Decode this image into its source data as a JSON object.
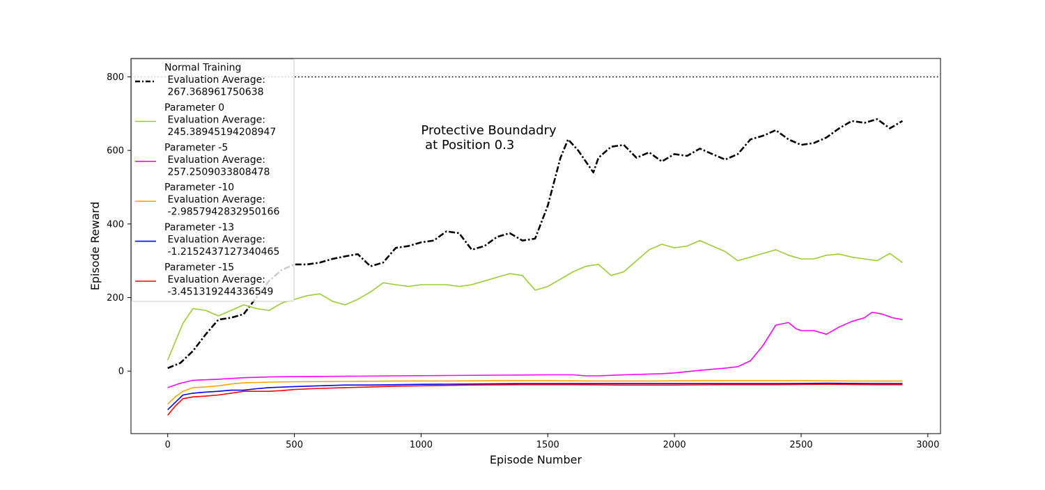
{
  "chart_data": {
    "type": "line",
    "title": "",
    "xlabel": "Episode Number",
    "ylabel": "Episode Reward",
    "xlim": [
      -145,
      3050
    ],
    "ylim": [
      -170,
      850
    ],
    "xticks": [
      0,
      500,
      1000,
      1500,
      2000,
      2500,
      3000
    ],
    "yticks": [
      0,
      200,
      400,
      600,
      800
    ],
    "grid": false,
    "legend_position": "top-left",
    "annotation": {
      "lines": [
        "Protective Boundadry",
        " at Position 0.3"
      ],
      "x": 1000,
      "y": 612
    },
    "reference_line": {
      "y": 800,
      "style": "dotted",
      "color": "#000000"
    },
    "series": [
      {
        "name": "Normal Training\n Evaluation Average:\n 267.368961750638",
        "color": "#000000",
        "style": "dashdot",
        "x": [
          0,
          50,
          100,
          150,
          200,
          250,
          300,
          350,
          400,
          450,
          500,
          550,
          600,
          650,
          700,
          750,
          800,
          850,
          900,
          950,
          1000,
          1050,
          1100,
          1150,
          1200,
          1250,
          1300,
          1350,
          1400,
          1450,
          1500,
          1550,
          1580,
          1620,
          1650,
          1680,
          1700,
          1750,
          1800,
          1850,
          1900,
          1950,
          2000,
          2050,
          2100,
          2150,
          2200,
          2250,
          2300,
          2350,
          2400,
          2450,
          2500,
          2550,
          2600,
          2650,
          2700,
          2750,
          2800,
          2850,
          2900
        ],
        "values": [
          8,
          22,
          55,
          100,
          140,
          145,
          155,
          200,
          245,
          275,
          290,
          290,
          295,
          305,
          312,
          318,
          285,
          295,
          335,
          340,
          350,
          355,
          380,
          375,
          330,
          340,
          365,
          375,
          355,
          360,
          450,
          580,
          630,
          600,
          570,
          540,
          580,
          610,
          615,
          580,
          595,
          570,
          590,
          585,
          605,
          590,
          575,
          590,
          630,
          640,
          655,
          630,
          615,
          620,
          635,
          660,
          680,
          675,
          685,
          660,
          680
        ]
      },
      {
        "name": "Parameter 0\n Evaluation Average:\n 245.38945194208947",
        "color": "#9acd32",
        "style": "solid",
        "x": [
          0,
          30,
          60,
          100,
          150,
          200,
          250,
          300,
          350,
          400,
          450,
          500,
          550,
          600,
          650,
          700,
          750,
          800,
          850,
          900,
          950,
          1000,
          1050,
          1100,
          1150,
          1200,
          1250,
          1300,
          1350,
          1400,
          1450,
          1500,
          1550,
          1600,
          1650,
          1700,
          1750,
          1800,
          1850,
          1900,
          1950,
          2000,
          2050,
          2100,
          2150,
          2200,
          2250,
          2300,
          2350,
          2400,
          2450,
          2500,
          2550,
          2600,
          2650,
          2700,
          2750,
          2800,
          2850,
          2900
        ],
        "values": [
          30,
          80,
          130,
          170,
          165,
          150,
          165,
          180,
          170,
          165,
          185,
          195,
          205,
          210,
          190,
          180,
          195,
          215,
          240,
          235,
          230,
          235,
          235,
          235,
          230,
          235,
          245,
          255,
          265,
          260,
          220,
          230,
          250,
          270,
          285,
          290,
          260,
          270,
          300,
          330,
          345,
          335,
          340,
          355,
          340,
          325,
          300,
          310,
          320,
          330,
          315,
          305,
          305,
          315,
          318,
          310,
          305,
          300,
          320,
          295
        ]
      },
      {
        "name": "Parameter -5\n Evaluation Average:\n 257.2509033808478",
        "color": "#ff00ff",
        "style": "solid",
        "x": [
          0,
          50,
          100,
          200,
          300,
          400,
          500,
          700,
          900,
          1100,
          1300,
          1500,
          1600,
          1650,
          1700,
          1800,
          1900,
          1950,
          2000,
          2100,
          2200,
          2250,
          2300,
          2350,
          2400,
          2450,
          2480,
          2500,
          2550,
          2600,
          2650,
          2700,
          2750,
          2780,
          2820,
          2860,
          2900
        ],
        "values": [
          -45,
          -33,
          -25,
          -22,
          -18,
          -16,
          -15,
          -14,
          -13,
          -12,
          -11,
          -10,
          -10,
          -13,
          -13,
          -10,
          -8,
          -7,
          -5,
          2,
          8,
          12,
          28,
          70,
          125,
          132,
          115,
          110,
          110,
          100,
          120,
          135,
          145,
          160,
          155,
          145,
          140
        ]
      },
      {
        "name": "Parameter -10\n Evaluation Average:\n -2.9857942832950166",
        "color": "#ffa500",
        "style": "solid",
        "x": [
          0,
          30,
          60,
          100,
          150,
          200,
          250,
          300,
          400,
          500,
          700,
          900,
          1100,
          1300,
          1500,
          1700,
          1900,
          2100,
          2300,
          2500,
          2700,
          2900
        ],
        "values": [
          -90,
          -70,
          -55,
          -45,
          -43,
          -40,
          -35,
          -32,
          -30,
          -29,
          -28,
          -27,
          -27,
          -26,
          -26,
          -27,
          -27,
          -26,
          -26,
          -26,
          -27,
          -27
        ]
      },
      {
        "name": "Parameter -13\n Evaluation Average:\n -1.2152437127340465",
        "color": "#0000ff",
        "style": "solid",
        "x": [
          0,
          30,
          60,
          100,
          150,
          200,
          250,
          300,
          350,
          400,
          500,
          600,
          700,
          800,
          900,
          1000,
          1200,
          1400,
          1600,
          1800,
          2000,
          2200,
          2400,
          2600,
          2800,
          2900
        ],
        "values": [
          -105,
          -85,
          -65,
          -60,
          -57,
          -55,
          -52,
          -52,
          -48,
          -45,
          -42,
          -40,
          -38,
          -38,
          -37,
          -36,
          -35,
          -34,
          -34,
          -34,
          -34,
          -34,
          -34,
          -33,
          -34,
          -34
        ]
      },
      {
        "name": "Parameter -15\n Evaluation Average:\n -3.451319244336549",
        "color": "#ff0000",
        "style": "solid",
        "x": [
          0,
          30,
          60,
          100,
          150,
          200,
          250,
          300,
          350,
          400,
          450,
          500,
          600,
          700,
          800,
          900,
          1000,
          1200,
          1400,
          1600,
          1800,
          2000,
          2200,
          2400,
          2600,
          2800,
          2900
        ],
        "values": [
          -120,
          -95,
          -75,
          -70,
          -68,
          -65,
          -60,
          -55,
          -55,
          -55,
          -53,
          -50,
          -47,
          -45,
          -43,
          -41,
          -40,
          -38,
          -37,
          -37,
          -38,
          -38,
          -37,
          -37,
          -36,
          -37,
          -37
        ]
      }
    ]
  }
}
